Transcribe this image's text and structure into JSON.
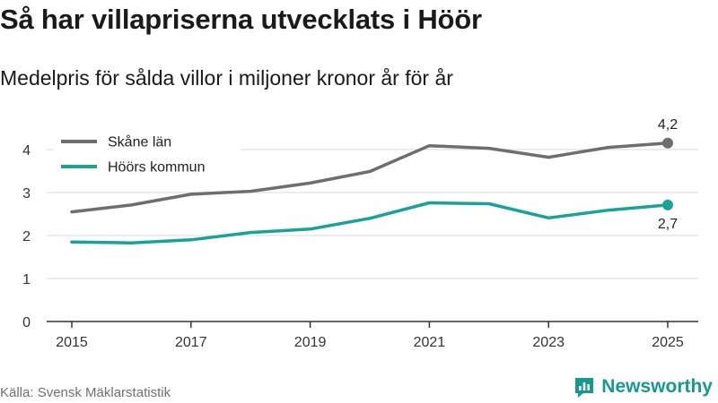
{
  "title": "Så har villapriserna utvecklats i Höör",
  "subtitle": "Medelpris för sålda villor i miljoner kronor år för år",
  "source": "Källa: Svensk Mäklarstatistik",
  "brand": "Newsworthy",
  "colors": {
    "skane": "#6e6e6e",
    "hoor": "#17a397",
    "brand": "#159a8f",
    "grid": "#d9d9d9",
    "axis": "#333333"
  },
  "chart_data": {
    "type": "line",
    "x": [
      2015,
      2016,
      2017,
      2018,
      2019,
      2020,
      2021,
      2022,
      2023,
      2024,
      2025
    ],
    "x_ticks": [
      "2015",
      "2017",
      "2019",
      "2021",
      "2023",
      "2025"
    ],
    "y_ticks": [
      "0",
      "1",
      "2",
      "3",
      "4"
    ],
    "ylim": [
      0,
      4.4
    ],
    "xlim": [
      2015,
      2025
    ],
    "grid": true,
    "legend_position": "top-left",
    "series": [
      {
        "name": "Skåne län",
        "key": "skane",
        "values": [
          2.55,
          2.71,
          2.96,
          3.03,
          3.22,
          3.49,
          4.09,
          4.03,
          3.82,
          4.05,
          4.15
        ],
        "end_label": "4,2",
        "end_label_position": "above"
      },
      {
        "name": "Höörs kommun",
        "key": "hoor",
        "values": [
          1.85,
          1.83,
          1.9,
          2.07,
          2.15,
          2.4,
          2.76,
          2.74,
          2.41,
          2.59,
          2.71
        ],
        "end_label": "2,7",
        "end_label_position": "below"
      }
    ]
  }
}
